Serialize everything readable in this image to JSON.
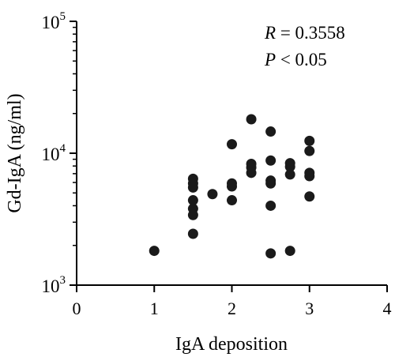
{
  "chart_data": {
    "type": "scatter",
    "title": "",
    "xlabel": "IgA deposition",
    "ylabel": "Gd-IgA (ng/ml)",
    "xlim": [
      0,
      4
    ],
    "ylim": [
      1000,
      100000
    ],
    "y_scale": "log",
    "xticks": [
      "0",
      "1",
      "2",
      "3",
      "4"
    ],
    "yticks": [
      {
        "base": "10",
        "exp": "3"
      },
      {
        "base": "10",
        "exp": "4"
      },
      {
        "base": "10",
        "exp": "5"
      }
    ],
    "grid": false,
    "legend": "none",
    "annotations": [
      {
        "symbol": "R",
        "rest": " = 0.3558"
      },
      {
        "symbol": "P",
        "rest": " < 0.05"
      }
    ],
    "marker_color": "#1a1a1a",
    "points": [
      {
        "x": 1.0,
        "y": 1820
      },
      {
        "x": 1.5,
        "y": 6400
      },
      {
        "x": 1.5,
        "y": 5900
      },
      {
        "x": 1.5,
        "y": 5500
      },
      {
        "x": 1.5,
        "y": 4400
      },
      {
        "x": 1.5,
        "y": 3800
      },
      {
        "x": 1.5,
        "y": 3400
      },
      {
        "x": 1.5,
        "y": 2450
      },
      {
        "x": 1.75,
        "y": 4900
      },
      {
        "x": 2.0,
        "y": 11700
      },
      {
        "x": 2.0,
        "y": 5900
      },
      {
        "x": 2.0,
        "y": 5600
      },
      {
        "x": 2.0,
        "y": 4400
      },
      {
        "x": 2.25,
        "y": 18100
      },
      {
        "x": 2.25,
        "y": 8300
      },
      {
        "x": 2.25,
        "y": 7800
      },
      {
        "x": 2.25,
        "y": 7100
      },
      {
        "x": 2.5,
        "y": 14600
      },
      {
        "x": 2.5,
        "y": 8800
      },
      {
        "x": 2.5,
        "y": 6200
      },
      {
        "x": 2.5,
        "y": 5900
      },
      {
        "x": 2.5,
        "y": 4000
      },
      {
        "x": 2.5,
        "y": 1740
      },
      {
        "x": 2.75,
        "y": 8400
      },
      {
        "x": 2.75,
        "y": 7900
      },
      {
        "x": 2.75,
        "y": 6900
      },
      {
        "x": 2.75,
        "y": 1820
      },
      {
        "x": 3.0,
        "y": 12400
      },
      {
        "x": 3.0,
        "y": 10400
      },
      {
        "x": 3.0,
        "y": 7100
      },
      {
        "x": 3.0,
        "y": 6700
      },
      {
        "x": 3.0,
        "y": 4700
      }
    ]
  }
}
